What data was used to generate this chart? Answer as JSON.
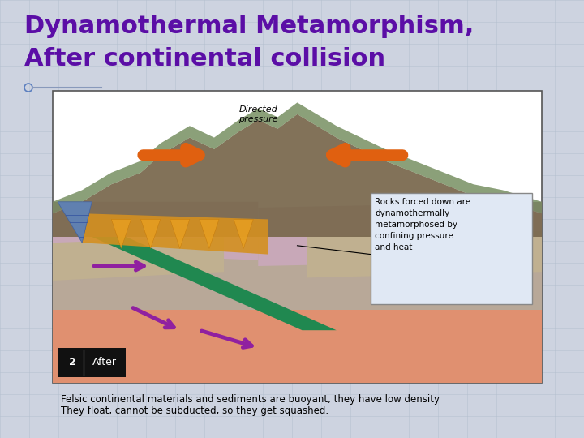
{
  "title_line1": "Dynamothermal Metamorphism,",
  "title_line2": "After continental collision",
  "title_color": "#5B0EA6",
  "title_fontsize": 22,
  "background_color": "#CDD3E0",
  "slide_bg": "#CDD3E0",
  "grid_color": "#B0BCCC",
  "caption_line1": "Felsic continental materials and sediments are buoyant, they have low density",
  "caption_line2": "They float, cannot be subducted, so they get squashed.",
  "caption_fontsize": 8.5,
  "caption_color": "#000000",
  "image_border_color": "#555555",
  "ann_box_text": "Rocks forced down are\ndynamothermally\nmetamorphosed by\nconfining pressure\nand heat",
  "directed_pressure_text": "Directed\npressure",
  "badge_text_num": "2",
  "badge_text_label": "After"
}
